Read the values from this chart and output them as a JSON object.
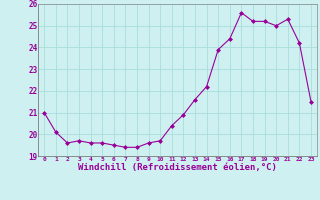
{
  "x": [
    0,
    1,
    2,
    3,
    4,
    5,
    6,
    7,
    8,
    9,
    10,
    11,
    12,
    13,
    14,
    15,
    16,
    17,
    18,
    19,
    20,
    21,
    22,
    23
  ],
  "y": [
    21.0,
    20.1,
    19.6,
    19.7,
    19.6,
    19.6,
    19.5,
    19.4,
    19.4,
    19.6,
    19.7,
    20.4,
    20.9,
    21.6,
    22.2,
    23.9,
    24.4,
    25.6,
    25.2,
    25.2,
    25.0,
    25.3,
    24.2,
    21.5
  ],
  "line_color": "#990099",
  "marker": "D",
  "markersize": 2.0,
  "linewidth": 0.8,
  "background_color": "#cef0f0",
  "grid_color": "#aadddd",
  "xlabel": "Windchill (Refroidissement éolien,°C)",
  "xlabel_fontsize": 6.5,
  "xlabel_color": "#990099",
  "tick_color": "#990099",
  "ylim": [
    19,
    26
  ],
  "xlim": [
    -0.5,
    23.5
  ],
  "yticks": [
    19,
    20,
    21,
    22,
    23,
    24,
    25,
    26
  ],
  "xtick_labels": [
    "0",
    "1",
    "2",
    "3",
    "4",
    "5",
    "6",
    "7",
    "8",
    "9",
    "10",
    "11",
    "12",
    "13",
    "14",
    "15",
    "16",
    "17",
    "18",
    "19",
    "20",
    "21",
    "22",
    "23"
  ]
}
